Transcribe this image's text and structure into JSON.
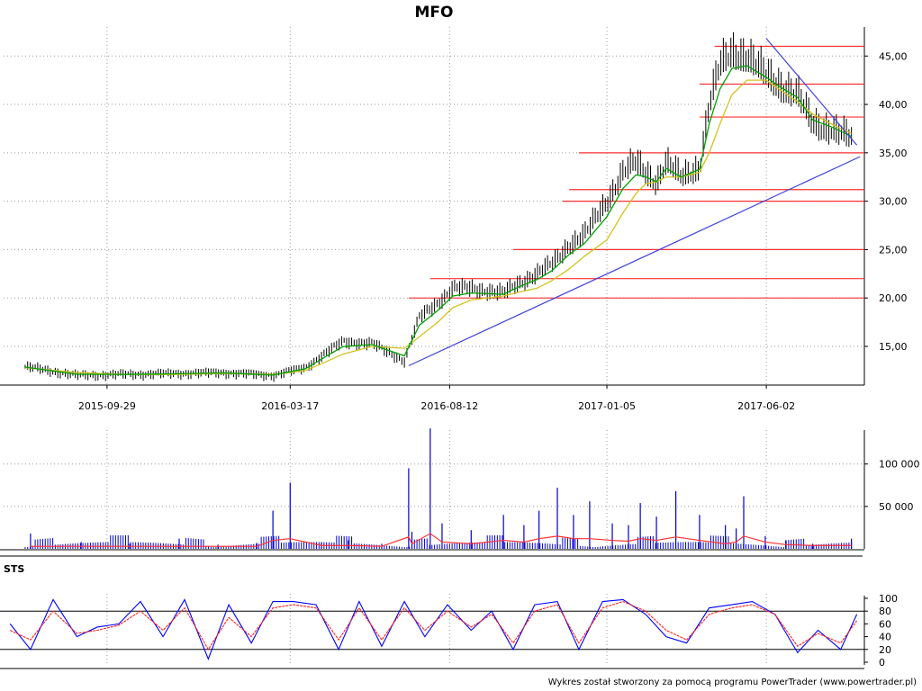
{
  "chart_data": [
    {
      "type": "candlestick",
      "title": "MFO",
      "x_tick_labels": [
        "2015-09-29",
        "2016-03-17",
        "2016-08-12",
        "2017-01-05",
        "2017-06-02"
      ],
      "y_tick_labels": [
        "15,00",
        "20,00",
        "25,00",
        "30,00",
        "35,00",
        "40,00",
        "45,00"
      ],
      "y_ticks": [
        15,
        20,
        25,
        30,
        35,
        40,
        45
      ],
      "ylim": [
        11,
        48
      ],
      "grid": true,
      "x_dates": [
        "2015-07-15",
        "2015-09-01",
        "2015-10-15",
        "2015-12-01",
        "2016-01-15",
        "2016-03-01",
        "2016-03-31",
        "2016-04-15",
        "2016-05-05",
        "2016-06-01",
        "2016-07-01",
        "2016-07-15",
        "2016-08-01",
        "2016-08-15",
        "2016-09-01",
        "2016-10-01",
        "2016-10-15",
        "2016-11-01",
        "2016-11-15",
        "2016-12-01",
        "2016-12-15",
        "2017-01-05",
        "2017-01-20",
        "2017-02-01",
        "2017-02-10",
        "2017-02-20",
        "2017-03-01",
        "2017-03-15",
        "2017-04-01",
        "2017-04-10",
        "2017-04-20",
        "2017-05-01",
        "2017-05-15",
        "2017-06-02",
        "2017-06-15",
        "2017-07-01",
        "2017-07-15",
        "2017-08-01",
        "2017-08-20"
      ],
      "close": [
        12.9,
        12.0,
        12.1,
        12.2,
        12.3,
        12.0,
        12.8,
        14.0,
        15.5,
        15.3,
        13.5,
        18.0,
        19.5,
        21.0,
        21.0,
        20.5,
        21.5,
        22.5,
        23.5,
        25.5,
        26.5,
        30.0,
        33.0,
        34.0,
        33.0,
        32.0,
        34.0,
        32.5,
        33.5,
        40.0,
        44.0,
        45.5,
        45.0,
        43.0,
        42.0,
        41.0,
        38.0,
        37.5,
        36.5
      ],
      "moving_average": [
        12.8,
        12.3,
        12.1,
        12.1,
        12.2,
        12.1,
        12.5,
        13.2,
        14.2,
        15.0,
        14.8,
        16.0,
        17.5,
        19.0,
        19.8,
        20.2,
        20.6,
        21.0,
        21.8,
        23.0,
        24.3,
        26.0,
        28.8,
        30.8,
        31.8,
        32.0,
        32.5,
        32.5,
        33.0,
        35.0,
        38.0,
        41.0,
        42.5,
        42.5,
        41.5,
        40.3,
        39.0,
        38.0,
        37.0
      ],
      "horizontal_levels": [
        {
          "value": 46.0,
          "from": "2017-04-15"
        },
        {
          "value": 42.1,
          "from": "2017-04-01"
        },
        {
          "value": 38.7,
          "from": "2017-04-01"
        },
        {
          "value": 35.0,
          "from": "2016-12-10"
        },
        {
          "value": 31.2,
          "from": "2016-12-01"
        },
        {
          "value": 30.0,
          "from": "2016-11-25"
        },
        {
          "value": 25.0,
          "from": "2016-10-10"
        },
        {
          "value": 22.0,
          "from": "2016-07-25"
        },
        {
          "value": 20.0,
          "from": "2016-07-05"
        }
      ],
      "trend_lines": [
        {
          "from": {
            "x": "2016-07-05",
            "y": 13.0
          },
          "to": {
            "x": "2017-08-28",
            "y": 34.6
          }
        },
        {
          "from": {
            "x": "2017-06-02",
            "y": 46.8
          },
          "to": {
            "x": "2017-08-25",
            "y": 35.8
          }
        }
      ],
      "colors": {
        "candles": "#000000",
        "ma_green": "#00a000",
        "ma_yellow": "#d4c21c",
        "levels": "#ff3030",
        "trend": "#4040e0"
      }
    },
    {
      "type": "bar",
      "name": "volume",
      "y_tick_labels": [
        "50 000",
        "100 000"
      ],
      "y_ticks": [
        50000,
        100000
      ],
      "ylim": [
        0,
        140000
      ],
      "x_dates": [
        "2015-07-20",
        "2015-09-05",
        "2015-10-20",
        "2015-12-05",
        "2016-01-10",
        "2016-02-15",
        "2016-03-01",
        "2016-03-17",
        "2016-04-15",
        "2016-05-10",
        "2016-06-10",
        "2016-07-05",
        "2016-07-08",
        "2016-07-25",
        "2016-08-05",
        "2016-09-01",
        "2016-10-01",
        "2016-10-20",
        "2016-11-03",
        "2016-11-20",
        "2016-12-05",
        "2016-12-20",
        "2017-01-10",
        "2017-01-25",
        "2017-02-05",
        "2017-02-20",
        "2017-03-10",
        "2017-04-01",
        "2017-04-25",
        "2017-05-05",
        "2017-05-12",
        "2017-06-01",
        "2017-06-20",
        "2017-07-15",
        "2017-08-20"
      ],
      "values": [
        18000,
        8000,
        6000,
        12000,
        5000,
        7000,
        45000,
        78000,
        8000,
        10000,
        6000,
        95000,
        20000,
        142000,
        30000,
        22000,
        40000,
        28000,
        45000,
        72000,
        40000,
        56000,
        30000,
        28000,
        54000,
        38000,
        68000,
        40000,
        28000,
        24000,
        62000,
        15000,
        10000,
        6000,
        12000
      ],
      "average": [
        3000,
        3000,
        3000,
        3000,
        3000,
        3000,
        10000,
        12000,
        4000,
        4000,
        3000,
        14000,
        6000,
        18000,
        8000,
        6000,
        10000,
        8000,
        12000,
        15000,
        12000,
        12000,
        10000,
        9000,
        12000,
        10000,
        14000,
        10000,
        6000,
        8000,
        15000,
        8000,
        5000,
        4000,
        4000
      ],
      "colors": {
        "bars": "#0000cc",
        "average": "#ff3030"
      }
    },
    {
      "type": "line",
      "name": "STS",
      "label": "STS",
      "y_tick_labels": [
        "0",
        "20",
        "40",
        "60",
        "80",
        "100"
      ],
      "y_ticks": [
        0,
        20,
        40,
        60,
        80,
        100
      ],
      "ylim": [
        0,
        100
      ],
      "reference_lines": [
        20,
        80
      ],
      "x_dates": [
        "2015-07-01",
        "2015-07-20",
        "2015-08-10",
        "2015-09-01",
        "2015-09-20",
        "2015-10-10",
        "2015-10-30",
        "2015-11-20",
        "2015-12-10",
        "2016-01-01",
        "2016-01-20",
        "2016-02-10",
        "2016-03-01",
        "2016-03-20",
        "2016-04-10",
        "2016-05-01",
        "2016-05-20",
        "2016-06-10",
        "2016-07-01",
        "2016-07-20",
        "2016-08-10",
        "2016-09-01",
        "2016-09-20",
        "2016-10-10",
        "2016-10-30",
        "2016-11-20",
        "2016-12-10",
        "2017-01-01",
        "2017-01-20",
        "2017-02-10",
        "2017-03-01",
        "2017-03-20",
        "2017-04-10",
        "2017-05-01",
        "2017-05-20",
        "2017-06-10",
        "2017-07-01",
        "2017-07-20",
        "2017-08-10",
        "2017-08-25"
      ],
      "series": [
        {
          "values": [
            60,
            20,
            98,
            40,
            55,
            60,
            95,
            40,
            98,
            5,
            90,
            30,
            95,
            95,
            90,
            20,
            95,
            25,
            95,
            40,
            90,
            50,
            80,
            20,
            90,
            95,
            20,
            95,
            98,
            75,
            40,
            30,
            85,
            90,
            95,
            75,
            15,
            50,
            20,
            75
          ]
        },
        {
          "values": [
            50,
            35,
            80,
            45,
            50,
            58,
            80,
            50,
            85,
            20,
            70,
            40,
            85,
            90,
            85,
            35,
            85,
            35,
            85,
            50,
            80,
            55,
            75,
            30,
            80,
            90,
            30,
            85,
            95,
            80,
            50,
            35,
            75,
            85,
            90,
            75,
            25,
            45,
            30,
            65
          ]
        }
      ],
      "colors": {
        "k": "#0000ff",
        "d": "#ff2020"
      }
    }
  ],
  "footer": "Wykres został stworzony za pomocą programu PowerTrader (www.powertrader.pl)"
}
